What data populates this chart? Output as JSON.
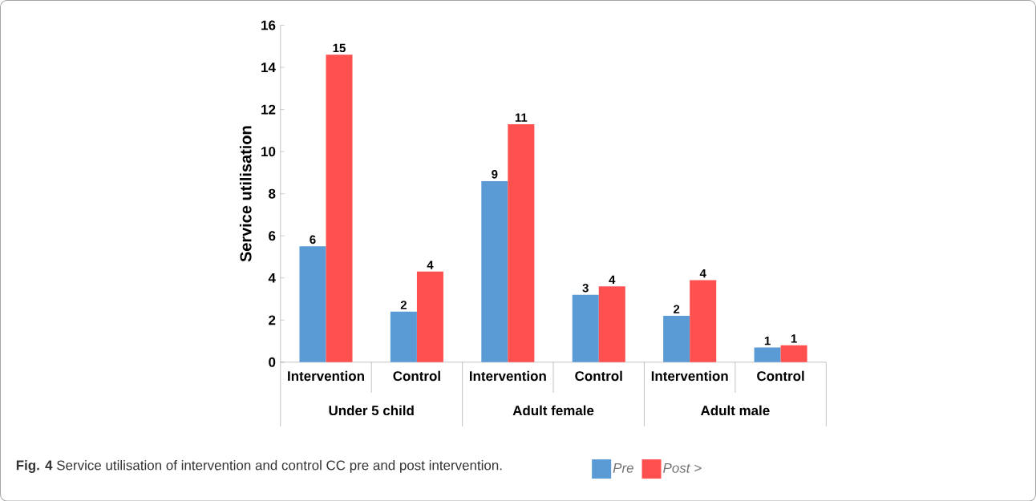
{
  "chart_data": {
    "type": "bar",
    "ylabel": "Service utilisation",
    "categories": [
      "Intervention",
      "Control",
      "Intervention",
      "Control",
      "Intervention",
      "Control"
    ],
    "series": [
      {
        "name": "Pre",
        "color": "#5b9bd5",
        "values": [
          5.5,
          2.4,
          8.6,
          3.2,
          2.2,
          0.7
        ],
        "value_labels": [
          "6",
          "2",
          "9",
          "3",
          "2",
          "1"
        ]
      },
      {
        "name": "Post >",
        "color": "#ff5050",
        "values": [
          14.6,
          4.3,
          11.3,
          3.6,
          3.9,
          0.8
        ],
        "value_labels": [
          "15",
          "4",
          "11",
          "4",
          "4",
          "1"
        ]
      }
    ],
    "ylim": [
      0,
      16
    ],
    "yticks": [
      0,
      2,
      4,
      6,
      8,
      10,
      12,
      14,
      16
    ],
    "grid": false,
    "legend": "bottom",
    "annotations": [
      "Under 5 child",
      "Adult female",
      "Adult male",
      "**Fig. 4** Service utilisation of intervention and control CC pre and post intervention."
    ]
  }
}
